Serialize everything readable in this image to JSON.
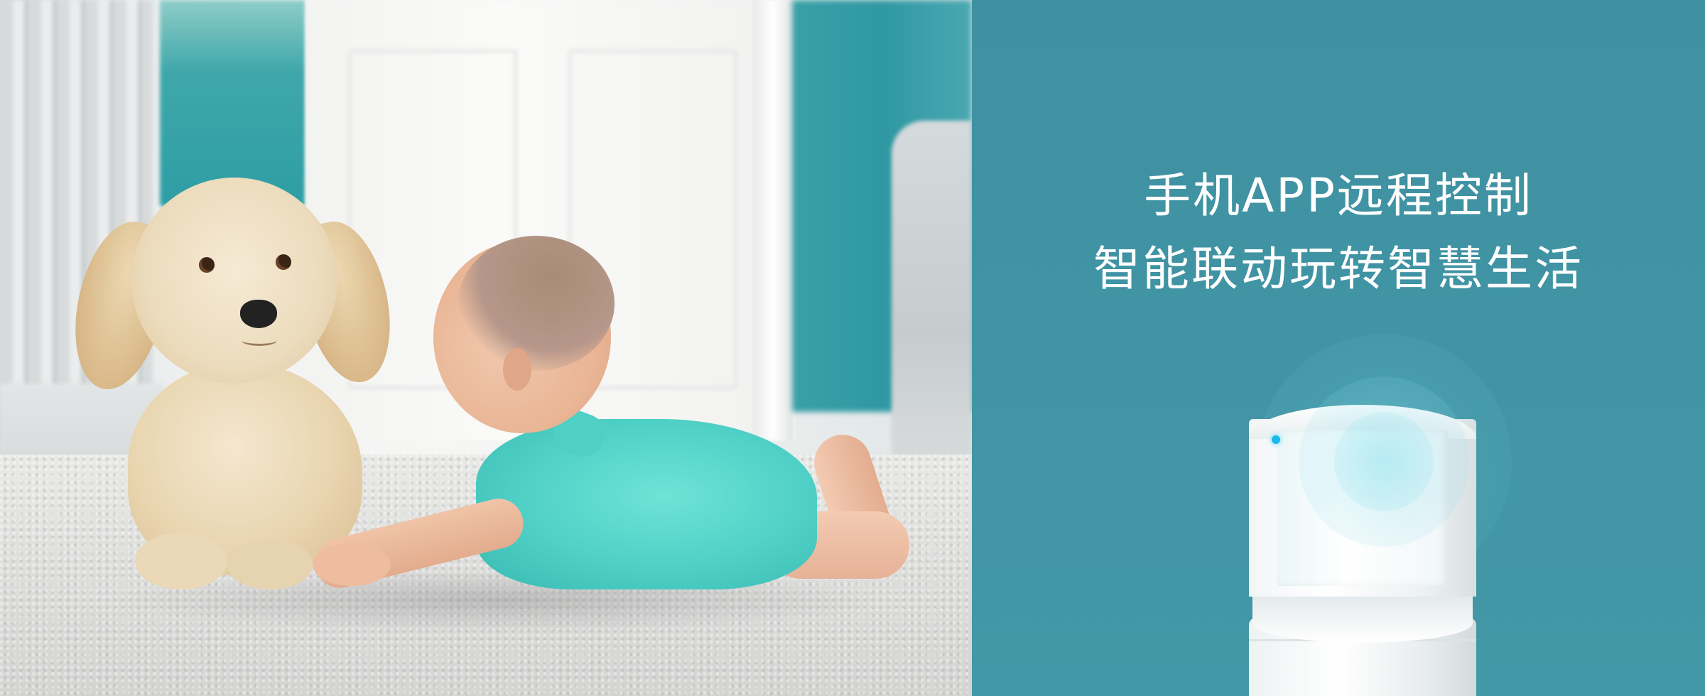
{
  "promo": {
    "headline_line1": "手机APP远程控制",
    "headline_line2": "智能联动玩转智慧生活"
  },
  "colors": {
    "promo_background": "#4194a4",
    "sensor_led": "#19b9ee",
    "romper": "#4fd0c6"
  }
}
